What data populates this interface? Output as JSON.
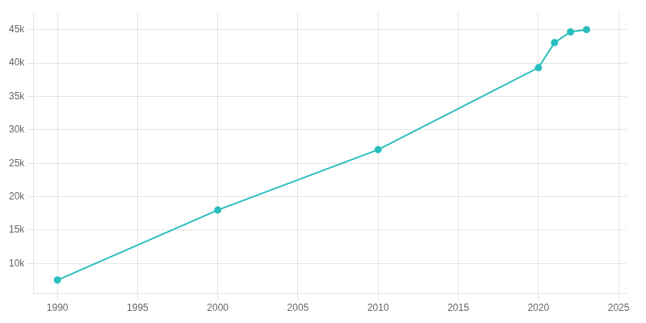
{
  "chart_data": {
    "type": "line",
    "x": [
      1990,
      2000,
      2010,
      2020,
      2021,
      2022,
      2023
    ],
    "values": [
      7530,
      18010,
      27038,
      39302,
      43046,
      44657,
      45000
    ],
    "color": "#29BDBD",
    "marker": "circle",
    "xlim": [
      1988.5,
      2025.5
    ],
    "ylim": [
      5500,
      47500
    ],
    "xticks": [
      1990,
      1995,
      2000,
      2005,
      2010,
      2015,
      2020,
      2025
    ],
    "yticks": [
      {
        "value": 10000,
        "label": "10k"
      },
      {
        "value": 15000,
        "label": "15k"
      },
      {
        "value": 20000,
        "label": "20k"
      },
      {
        "value": 25000,
        "label": "25k"
      },
      {
        "value": 30000,
        "label": "30k"
      },
      {
        "value": 35000,
        "label": "35k"
      },
      {
        "value": 40000,
        "label": "40k"
      },
      {
        "value": 45000,
        "label": "45k"
      }
    ],
    "grid": true
  }
}
